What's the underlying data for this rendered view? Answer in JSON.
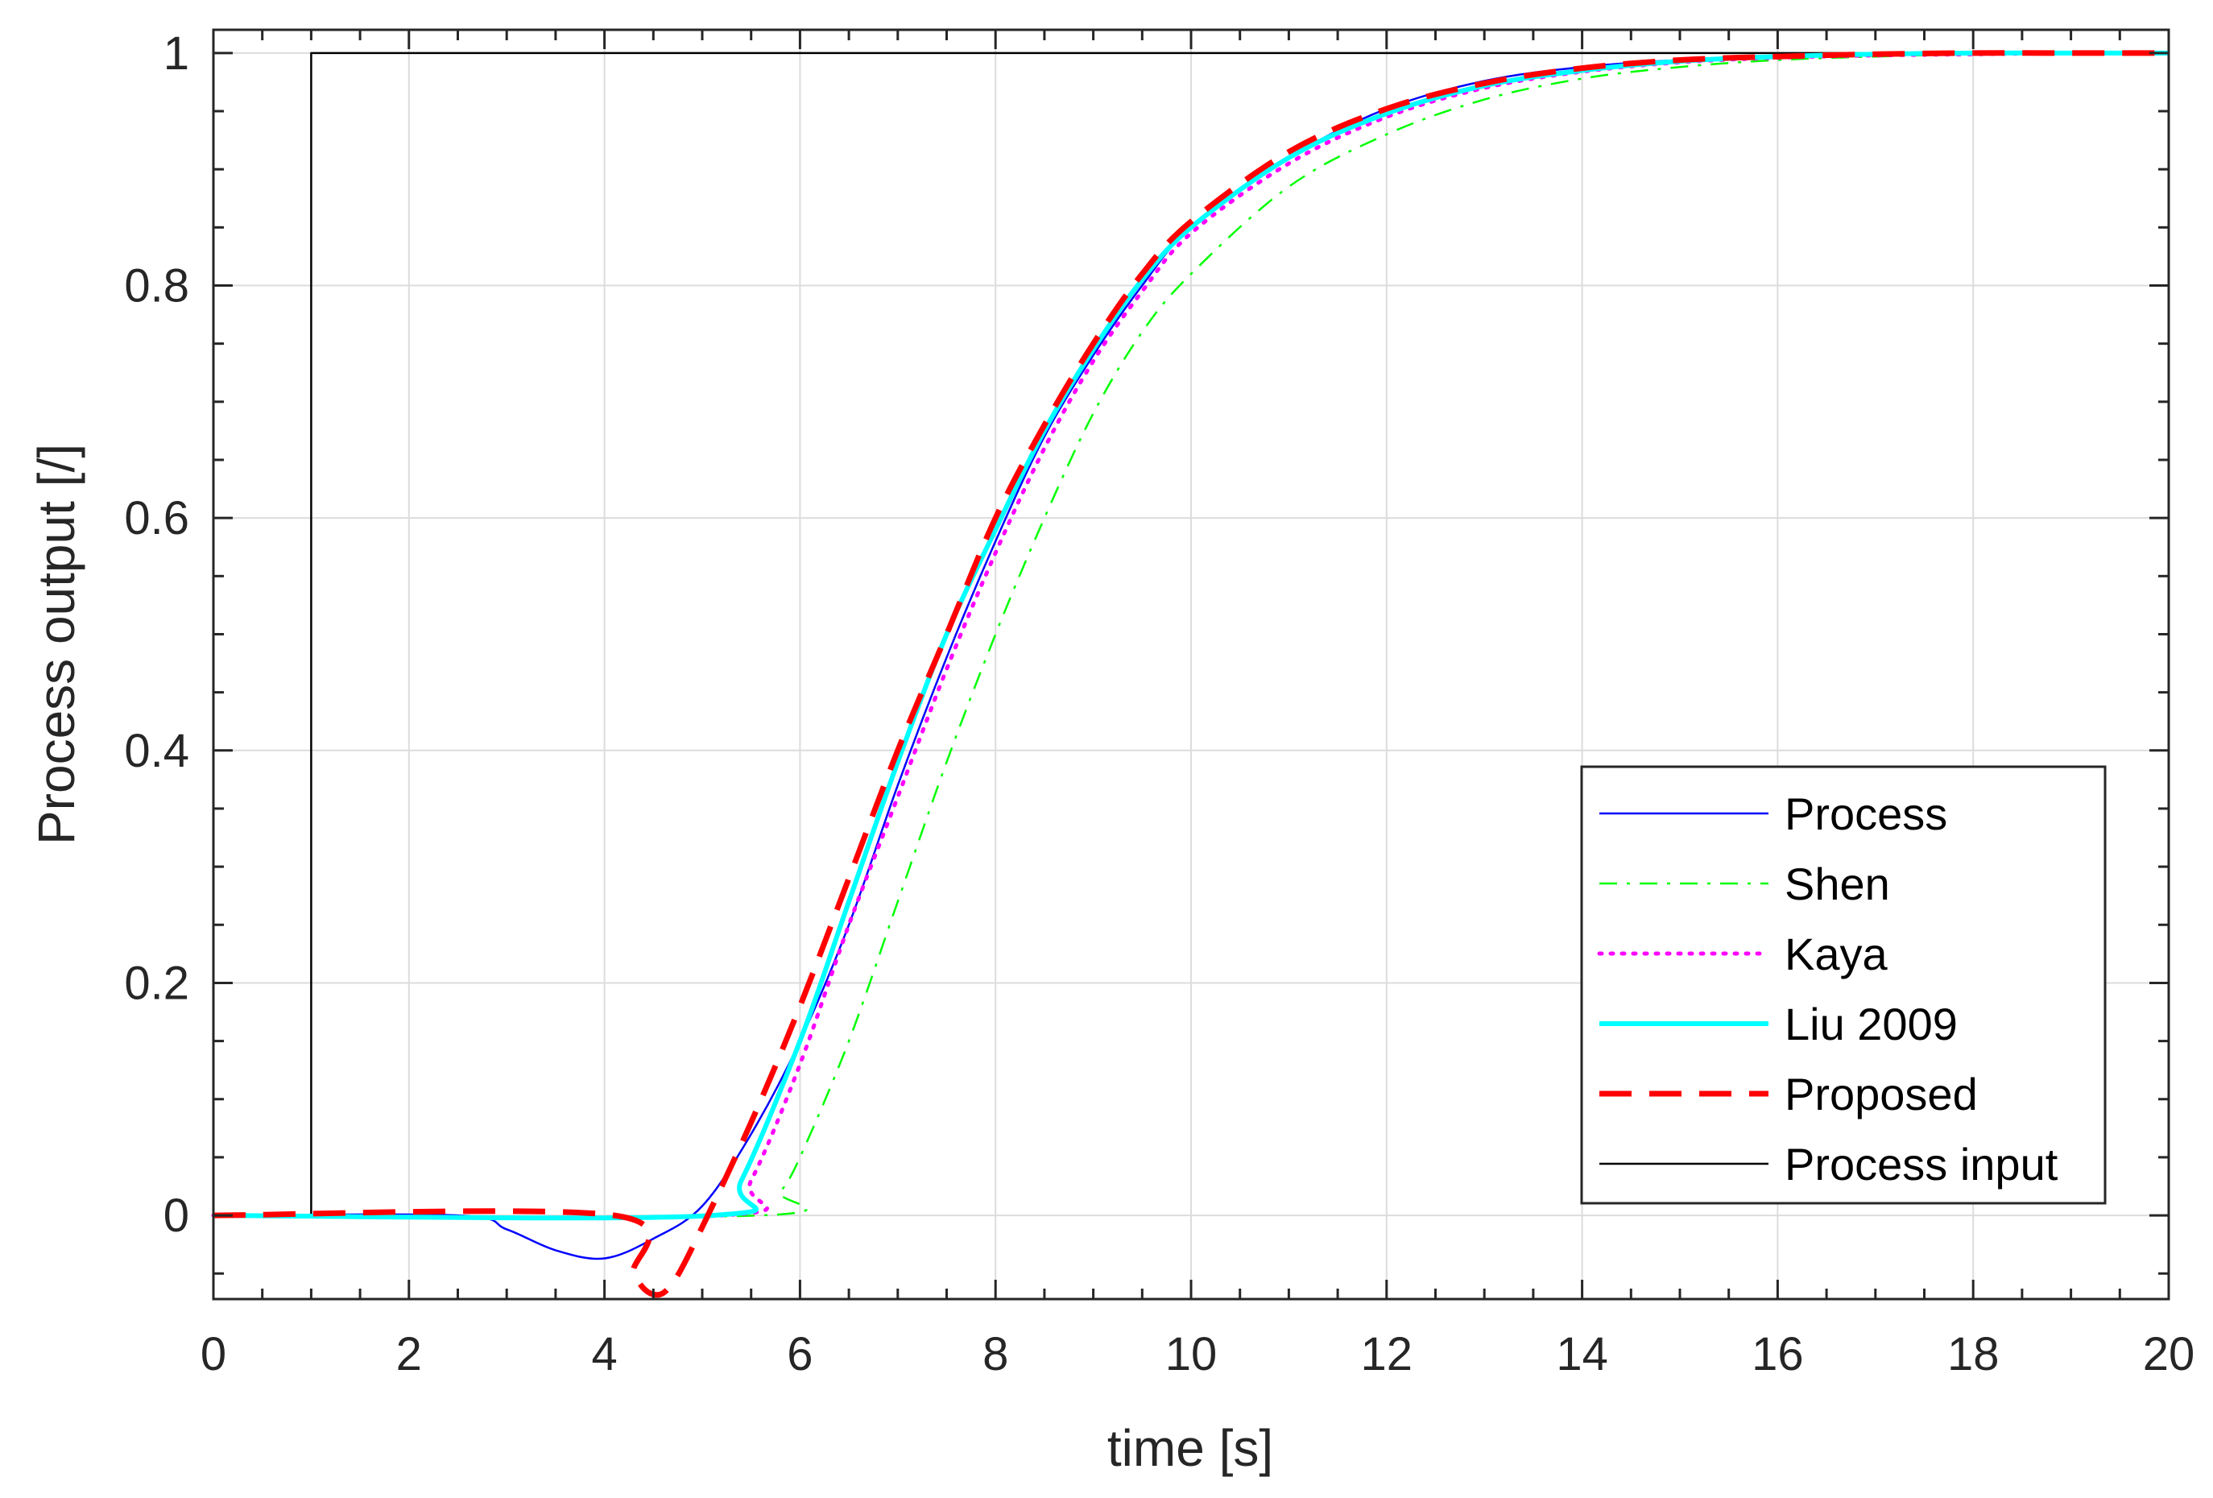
{
  "chart_data": {
    "type": "line",
    "xlabel": "time [s]",
    "ylabel": "Process output [/]",
    "xlim": [
      0,
      20
    ],
    "ylim": [
      -0.072,
      1.02
    ],
    "xticks": [
      0,
      2,
      4,
      6,
      8,
      10,
      12,
      14,
      16,
      18,
      20
    ],
    "xtick_labels": [
      "0",
      "2",
      "4",
      "6",
      "8",
      "10",
      "12",
      "14",
      "16",
      "18",
      "20"
    ],
    "yticks": [
      0,
      0.2,
      0.4,
      0.6,
      0.8,
      1
    ],
    "ytick_labels": [
      "0",
      "0.2",
      "0.4",
      "0.6",
      "0.8",
      "1"
    ],
    "grid": true,
    "legend_position": "bottom-right",
    "series": [
      {
        "name": "Process",
        "color": "#0000ff",
        "style": "solid",
        "x": [
          0,
          2.5,
          3.0,
          3.5,
          4.0,
          4.5,
          5.0,
          5.5,
          6.0,
          6.5,
          7.0,
          7.5,
          8.0,
          8.5,
          9.0,
          9.5,
          10,
          11,
          12,
          13,
          14,
          15,
          16,
          17,
          18,
          19,
          20
        ],
        "y": [
          0,
          0,
          -0.012,
          -0.03,
          -0.037,
          -0.02,
          0.008,
          0.07,
          0.15,
          0.25,
          0.37,
          0.48,
          0.58,
          0.67,
          0.74,
          0.8,
          0.85,
          0.91,
          0.952,
          0.976,
          0.988,
          0.994,
          0.997,
          0.999,
          1.0,
          1.0,
          1.0
        ]
      },
      {
        "name": "Shen",
        "color": "#00ff00",
        "style": "dashdot",
        "x": [
          0,
          5.6,
          5.8,
          6.0,
          6.5,
          7.0,
          7.5,
          8.0,
          8.5,
          9.0,
          9.5,
          10,
          11,
          12,
          13,
          14,
          15,
          16,
          17,
          18,
          19,
          20
        ],
        "y": [
          0,
          0,
          0.02,
          0.05,
          0.15,
          0.27,
          0.39,
          0.5,
          0.6,
          0.69,
          0.76,
          0.81,
          0.885,
          0.93,
          0.96,
          0.978,
          0.988,
          0.994,
          0.997,
          0.999,
          1.0,
          1.0
        ]
      },
      {
        "name": "Kaya",
        "color": "#ff00ff",
        "style": "dotted",
        "x": [
          0,
          5.2,
          5.5,
          6.0,
          6.5,
          7.0,
          7.5,
          8.0,
          8.5,
          9.0,
          9.5,
          10,
          11,
          12,
          13,
          14,
          15,
          16,
          17,
          18,
          19,
          20
        ],
        "y": [
          0,
          0,
          0.03,
          0.13,
          0.25,
          0.36,
          0.47,
          0.57,
          0.66,
          0.735,
          0.795,
          0.845,
          0.905,
          0.945,
          0.97,
          0.984,
          0.992,
          0.996,
          0.998,
          0.999,
          1.0,
          1.0
        ]
      },
      {
        "name": "Liu 2009",
        "color": "#00ffff",
        "style": "solid-thick",
        "x": [
          0,
          5.1,
          5.4,
          6.0,
          6.5,
          7.0,
          7.5,
          8.0,
          8.5,
          9.0,
          9.5,
          10,
          11,
          12,
          13,
          14,
          15,
          16,
          17,
          18,
          19,
          20
        ],
        "y": [
          0,
          0,
          0.03,
          0.15,
          0.27,
          0.39,
          0.5,
          0.59,
          0.675,
          0.745,
          0.805,
          0.85,
          0.91,
          0.948,
          0.972,
          0.985,
          0.993,
          0.997,
          0.999,
          1.0,
          1.0,
          1.0
        ]
      },
      {
        "name": "Proposed",
        "color": "#ff0000",
        "style": "dashed-thick",
        "x": [
          0,
          4.1,
          4.3,
          4.5,
          4.7,
          5.0,
          5.5,
          6.0,
          6.5,
          7.0,
          7.5,
          8.0,
          8.5,
          9.0,
          9.5,
          10,
          11,
          12,
          13,
          14,
          15,
          16,
          17,
          18,
          19,
          20
        ],
        "y": [
          0,
          0,
          -0.05,
          -0.068,
          -0.058,
          -0.01,
          0.08,
          0.18,
          0.29,
          0.4,
          0.5,
          0.6,
          0.68,
          0.75,
          0.81,
          0.855,
          0.915,
          0.952,
          0.974,
          0.987,
          0.994,
          0.997,
          0.999,
          1.0,
          1.0,
          1.0
        ]
      },
      {
        "name": "Process input",
        "color": "#000000",
        "style": "solid",
        "x": [
          0,
          1,
          1,
          20
        ],
        "y": [
          0,
          0,
          1,
          1
        ]
      }
    ]
  }
}
